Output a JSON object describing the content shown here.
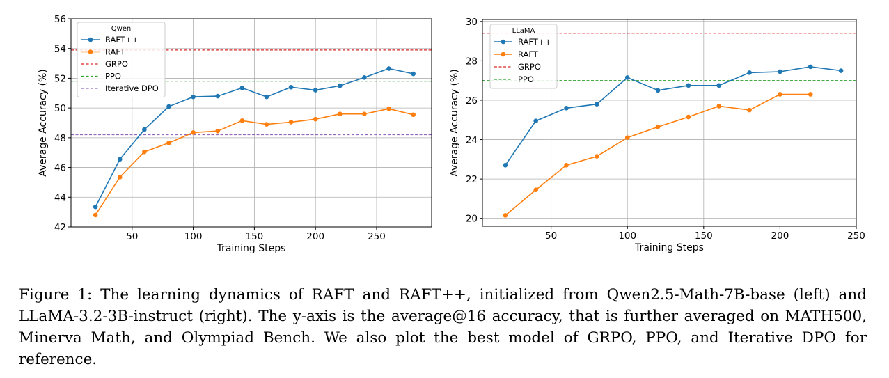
{
  "caption": "Figure 1: The learning dynamics of RAFT and RAFT++, initialized from Qwen2.5-Math-7B-base (left) and LLaMA-3.2-3B-instruct (right). The y-axis is the average@16 accuracy, that is further averaged on MATH500, Minerva Math, and Olympiad Bench. We also plot the best model of GRPO, PPO, and Iterative DPO for reference.",
  "chart_data": [
    {
      "type": "line",
      "legend_title": "Qwen",
      "legend_position": "top-left",
      "xlabel": "Training Steps",
      "ylabel": "Average Accuracy (%)",
      "xlim": [
        0,
        295
      ],
      "ylim": [
        42,
        56
      ],
      "xticks": [
        50,
        100,
        150,
        200,
        250
      ],
      "yticks": [
        42,
        44,
        46,
        48,
        50,
        52,
        54,
        56
      ],
      "grid": true,
      "series": [
        {
          "name": "RAFT++",
          "color": "#1f77b4",
          "x": [
            20,
            40,
            60,
            80,
            100,
            120,
            140,
            160,
            180,
            200,
            220,
            240,
            260,
            280
          ],
          "values": [
            43.35,
            46.55,
            48.55,
            50.1,
            50.75,
            50.8,
            51.35,
            50.75,
            51.4,
            51.2,
            51.5,
            52.05,
            52.65,
            52.3
          ]
        },
        {
          "name": "RAFT",
          "color": "#ff7f0e",
          "x": [
            20,
            40,
            60,
            80,
            100,
            120,
            140,
            160,
            180,
            200,
            220,
            240,
            260,
            280
          ],
          "values": [
            42.8,
            45.35,
            47.05,
            47.65,
            48.35,
            48.45,
            49.15,
            48.9,
            49.05,
            49.25,
            49.6,
            49.6,
            49.95,
            49.55
          ]
        }
      ],
      "reference_lines": [
        {
          "name": "GRPO",
          "color": "#d62728",
          "value": 53.9
        },
        {
          "name": "PPO",
          "color": "#2ca02c",
          "value": 51.8
        },
        {
          "name": "Iterative DPO",
          "color": "#9467bd",
          "value": 48.2
        }
      ]
    },
    {
      "type": "line",
      "legend_title": "LLaMA",
      "legend_position": "top-left",
      "xlabel": "Training Steps",
      "ylabel": "Average Accuracy (%)",
      "xlim": [
        5,
        250
      ],
      "ylim": [
        19.6,
        30.1
      ],
      "xticks": [
        50,
        100,
        150,
        200,
        250
      ],
      "yticks": [
        20,
        22,
        24,
        26,
        28,
        30
      ],
      "grid": true,
      "series": [
        {
          "name": "RAFT++",
          "color": "#1f77b4",
          "x": [
            20,
            40,
            60,
            80,
            100,
            120,
            140,
            160,
            180,
            200,
            220,
            240
          ],
          "values": [
            22.7,
            24.95,
            25.6,
            25.8,
            27.15,
            26.5,
            26.75,
            26.75,
            27.4,
            27.45,
            27.7,
            27.5
          ]
        },
        {
          "name": "RAFT",
          "color": "#ff7f0e",
          "x": [
            20,
            40,
            60,
            80,
            100,
            120,
            140,
            160,
            180,
            200,
            220
          ],
          "values": [
            20.15,
            21.45,
            22.7,
            23.15,
            24.1,
            24.65,
            25.15,
            25.7,
            25.5,
            26.3,
            26.3
          ]
        }
      ],
      "reference_lines": [
        {
          "name": "GRPO",
          "color": "#d62728",
          "value": 29.4
        },
        {
          "name": "PPO",
          "color": "#2ca02c",
          "value": 27.0
        }
      ]
    }
  ]
}
